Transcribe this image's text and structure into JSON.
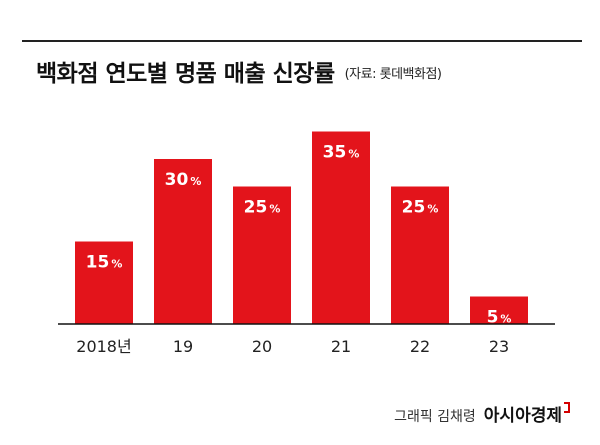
{
  "header": {
    "title": "백화점 연도별 명품 매출 신장률",
    "source": "(자료: 롯데백화점)"
  },
  "footer": {
    "credit": "그래픽 김채령",
    "logo": "아시아경제",
    "logo_mark": "logo-corner-mark"
  },
  "colors": {
    "bar": "#e3141b",
    "label": "#ffffff",
    "axis": "#111111"
  },
  "chart_data": {
    "type": "bar",
    "categories": [
      "2018년",
      "19",
      "20",
      "21",
      "22",
      "23"
    ],
    "values": [
      15,
      30,
      25,
      35,
      25,
      5
    ],
    "data_labels": [
      "15%",
      "30%",
      "25%",
      "35%",
      "25%",
      "5%"
    ],
    "unit": "%",
    "ylim": [
      0,
      40
    ],
    "xlabel": "",
    "ylabel": "",
    "grid": false,
    "legend": "none"
  }
}
